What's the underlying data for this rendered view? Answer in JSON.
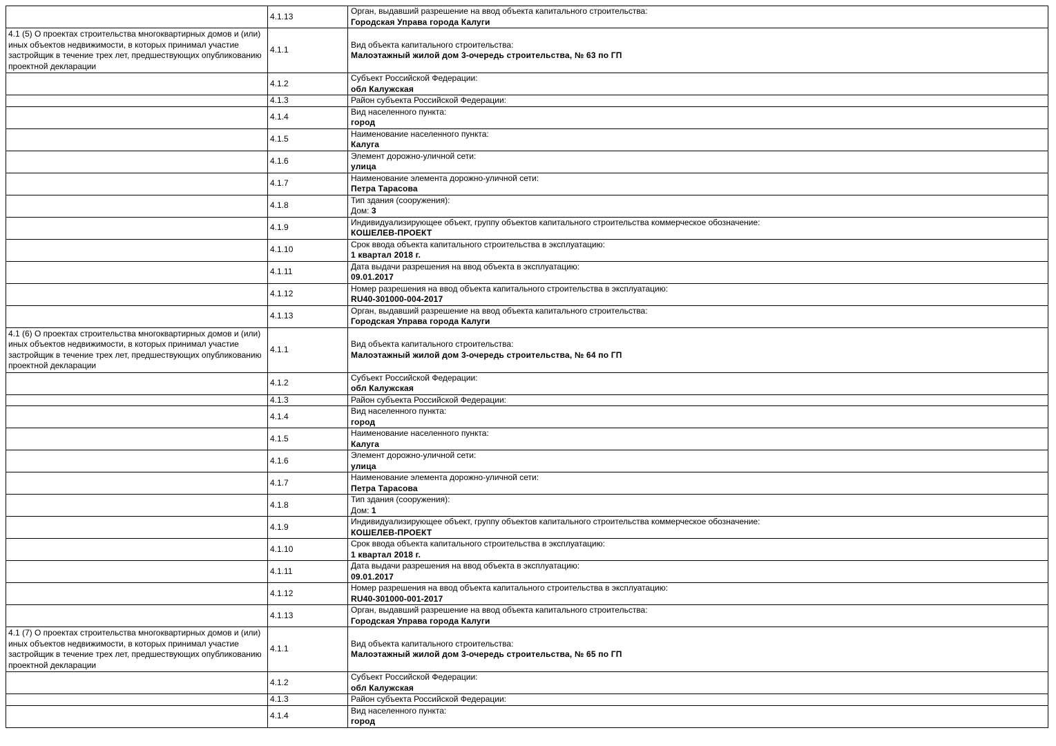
{
  "colors": {
    "background": "#ffffff",
    "border": "#000000",
    "text": "#000000"
  },
  "table": {
    "rows": [
      {
        "code": "4.1.13",
        "label": "Орган, выдавший разрешение на ввод объекта капитального строительства:",
        "value": "Городская Управа города Калуги"
      },
      {
        "section": "4.1 (5) О проектах строительства многоквартирных домов и (или) иных объектов недвижимости, в которых принимал участие застройщик в течение трех лет, предшествующих опубликованию проектной декларации",
        "code": "4.1.1",
        "label": "Вид объекта капитального строительства:",
        "value": "Малоэтажный жилой дом 3-очередь строительства, № 63 по ГП"
      },
      {
        "code": "4.1.2",
        "label": "Субъект Российской Федерации:",
        "value": "обл Калужская"
      },
      {
        "code": "4.1.3",
        "label": "Район субъекта Российской Федерации:",
        "value": ""
      },
      {
        "code": "4.1.4",
        "label": "Вид населенного пункта:",
        "value": "город"
      },
      {
        "code": "4.1.5",
        "label": "Наименование населенного пункта:",
        "value": "Калуга"
      },
      {
        "code": "4.1.6",
        "label": "Элемент дорожно-уличной сети:",
        "value": "улица"
      },
      {
        "code": "4.1.7",
        "label": "Наименование элемента дорожно-уличной сети:",
        "value": "Петра Тарасова"
      },
      {
        "code": "4.1.8",
        "label": "Тип здания (сооружения):",
        "value_prefix": "Дом: ",
        "value": "3"
      },
      {
        "code": "4.1.9",
        "label": "Индивидуализирующее объект, группу объектов капитального строительства коммерческое обозначение:",
        "value": "КОШЕЛЕВ-ПРОЕКТ"
      },
      {
        "code": "4.1.10",
        "label": "Срок ввода объекта капитального строительства в эксплуатацию:",
        "value": "1 квартал 2018 г."
      },
      {
        "code": "4.1.11",
        "label": "Дата выдачи разрешения на ввод объекта в эксплуатацию:",
        "value": "09.01.2017"
      },
      {
        "code": "4.1.12",
        "label": "Номер разрешения на ввод объекта капитального строительства в эксплуатацию:",
        "value": "RU40-301000-004-2017"
      },
      {
        "code": "4.1.13",
        "label": "Орган, выдавший разрешение на ввод объекта капитального строительства:",
        "value": "Городская Управа города Калуги"
      },
      {
        "section": "4.1 (6) О проектах строительства многоквартирных домов и (или) иных объектов недвижимости, в которых принимал участие застройщик в течение трех лет, предшествующих опубликованию проектной декларации",
        "code": "4.1.1",
        "label": "Вид объекта капитального строительства:",
        "value": "Малоэтажный жилой дом 3-очередь строительства, № 64 по ГП"
      },
      {
        "code": "4.1.2",
        "label": "Субъект Российской Федерации:",
        "value": "обл Калужская"
      },
      {
        "code": "4.1.3",
        "label": "Район субъекта Российской Федерации:",
        "value": ""
      },
      {
        "code": "4.1.4",
        "label": "Вид населенного пункта:",
        "value": "город"
      },
      {
        "code": "4.1.5",
        "label": "Наименование населенного пункта:",
        "value": "Калуга"
      },
      {
        "code": "4.1.6",
        "label": "Элемент дорожно-уличной сети:",
        "value": "улица"
      },
      {
        "code": "4.1.7",
        "label": "Наименование элемента дорожно-уличной сети:",
        "value": "Петра Тарасова"
      },
      {
        "code": "4.1.8",
        "label": "Тип здания (сооружения):",
        "value_prefix": "Дом: ",
        "value": "1"
      },
      {
        "code": "4.1.9",
        "label": "Индивидуализирующее объект, группу объектов капитального строительства коммерческое обозначение:",
        "value": "КОШЕЛЕВ-ПРОЕКТ"
      },
      {
        "code": "4.1.10",
        "label": "Срок ввода объекта капитального строительства в эксплуатацию:",
        "value": "1 квартал 2018 г."
      },
      {
        "code": "4.1.11",
        "label": "Дата выдачи разрешения на ввод объекта в эксплуатацию:",
        "value": "09.01.2017"
      },
      {
        "code": "4.1.12",
        "label": "Номер разрешения на ввод объекта капитального строительства в эксплуатацию:",
        "value": "RU40-301000-001-2017"
      },
      {
        "code": "4.1.13",
        "label": "Орган, выдавший разрешение на ввод объекта капитального строительства:",
        "value": "Городская Управа города Калуги"
      },
      {
        "section": "4.1 (7) О проектах строительства многоквартирных домов и (или) иных объектов недвижимости, в которых принимал участие застройщик в течение трех лет, предшествующих опубликованию проектной декларации",
        "code": "4.1.1",
        "label": "Вид объекта капитального строительства:",
        "value": "Малоэтажный жилой дом 3-очередь строительства, № 65 по ГП"
      },
      {
        "code": "4.1.2",
        "label": "Субъект Российской Федерации:",
        "value": "обл Калужская"
      },
      {
        "code": "4.1.3",
        "label": "Район субъекта Российской Федерации:",
        "value": ""
      },
      {
        "code": "4.1.4",
        "label": "Вид населенного пункта:",
        "value": "город"
      }
    ]
  }
}
